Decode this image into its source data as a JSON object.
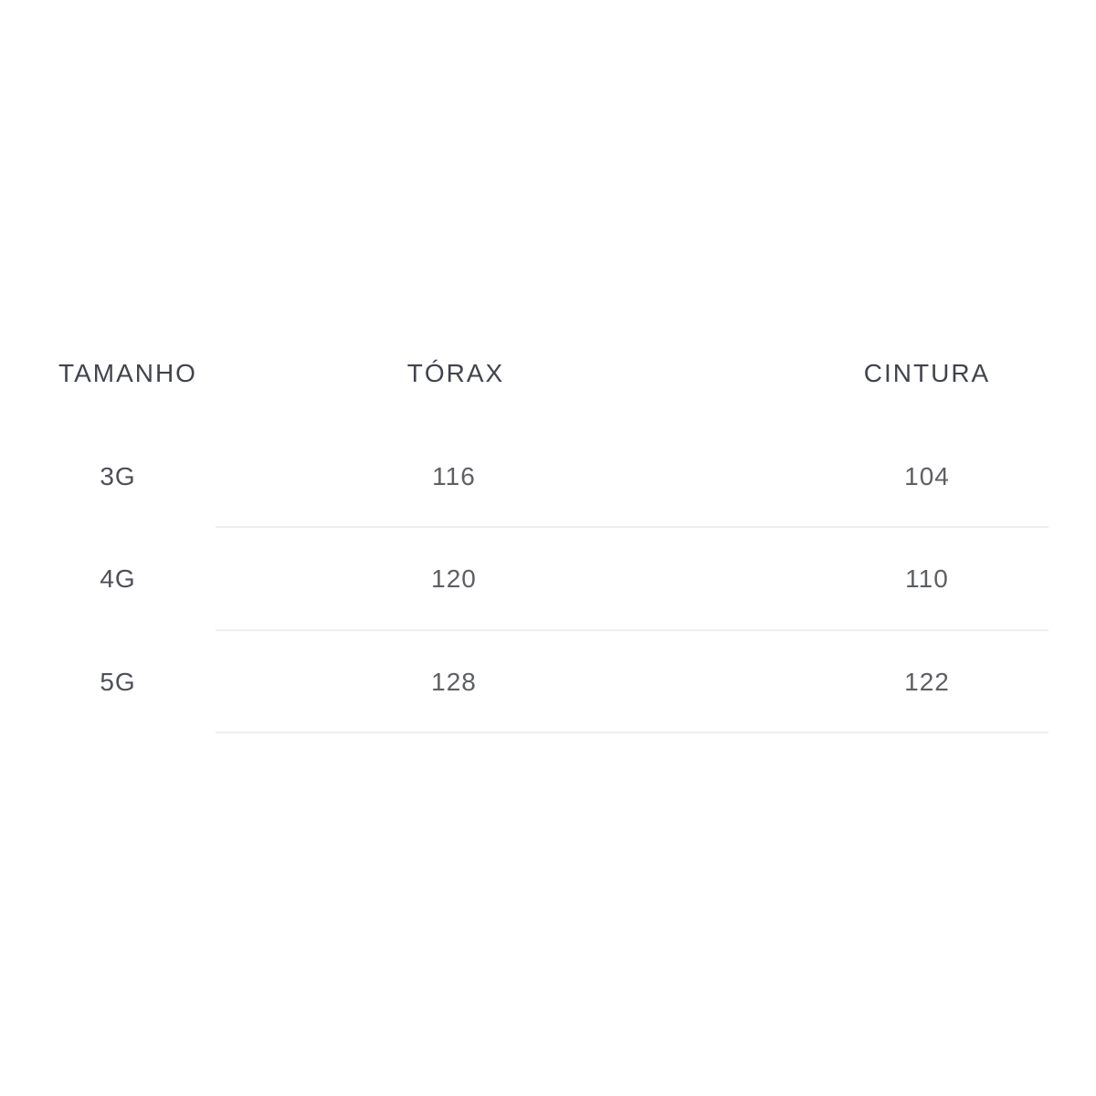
{
  "table": {
    "headers": [
      "TAMANHO",
      "TÓRAX",
      "CINTURA"
    ],
    "rows": [
      [
        "3G",
        "116",
        "104"
      ],
      [
        "4G",
        "120",
        "110"
      ],
      [
        "5G",
        "128",
        "122"
      ]
    ],
    "colors": {
      "header_text": "#41444c",
      "size_text": "#4e5057",
      "value_text": "#5d5f63",
      "divider": "#efefef",
      "background": "#ffffff"
    }
  },
  "chart_data": {
    "type": "table",
    "columns": [
      "TAMANHO",
      "TÓRAX",
      "CINTURA"
    ],
    "rows": [
      [
        "3G",
        116,
        104
      ],
      [
        "4G",
        120,
        110
      ],
      [
        "5G",
        128,
        122
      ]
    ],
    "title": ""
  }
}
